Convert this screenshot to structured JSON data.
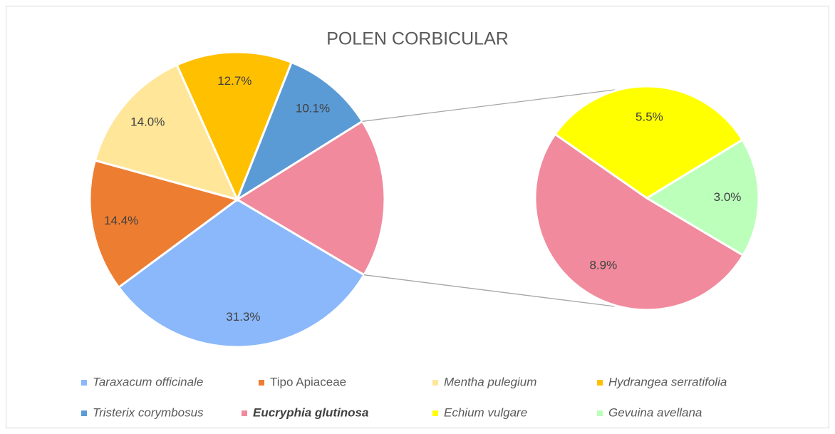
{
  "chart_data": {
    "type": "pie_of_pie",
    "title": "POLEN CORBICULAR",
    "pie": {
      "categories": [
        "Taraxacum officinale",
        "Tipo Apiaceae",
        "Mentha pulegium",
        "Hydrangea serratifolia",
        "Tristerix corymbosus"
      ],
      "values": [
        31.3,
        14.4,
        14.0,
        12.7,
        10.1
      ],
      "value_labels": [
        "31.3%",
        "14.4%",
        "14.0%",
        "12.7%",
        "10.1%"
      ],
      "colors": [
        "#8ab8fa",
        "#ed7d31",
        "#ffe699",
        "#ffc000",
        "#5b9bd5"
      ]
    },
    "second_pie": {
      "categories": [
        "Eucryphia glutinosa",
        "Echium vulgare",
        "Gevuina avellana"
      ],
      "values": [
        8.9,
        5.5,
        3.0
      ],
      "value_labels": [
        "8.9%",
        "5.5%",
        "3.0%"
      ],
      "colors": [
        "#f08a9c",
        "#ffff00",
        "#bbffbb"
      ]
    },
    "legend": "bottom"
  }
}
